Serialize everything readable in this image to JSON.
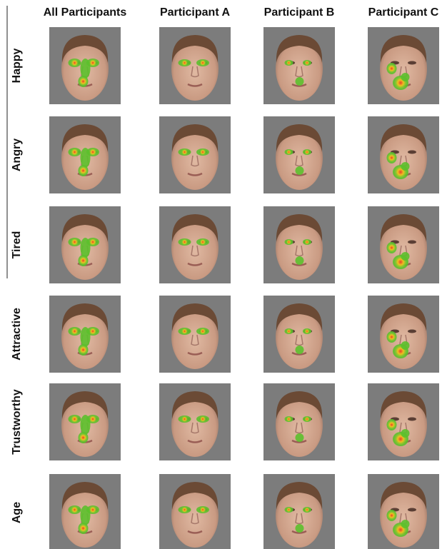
{
  "header": {
    "columns": [
      "All Participants",
      "Participant A",
      "Participant B",
      "Participant C"
    ]
  },
  "rows": [
    "Happy",
    "Angry",
    "Tired",
    "Attractive",
    "Trustworthy",
    "Age"
  ]
}
